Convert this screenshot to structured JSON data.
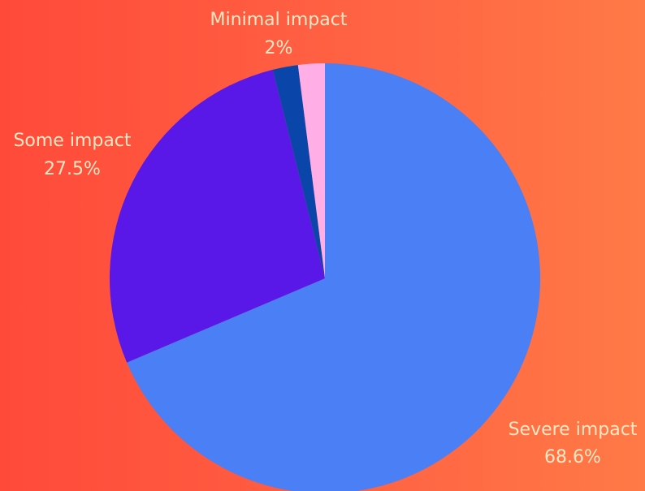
{
  "chart_data": {
    "type": "pie",
    "title": "",
    "slices": [
      {
        "label": "Severe impact",
        "value": 68.6,
        "value_label": "68.6%",
        "color": "#4b7ff5"
      },
      {
        "label": "Some impact",
        "value": 27.5,
        "value_label": "27.5%",
        "color": "#5a18e8"
      },
      {
        "label": "",
        "value": 1.9,
        "value_label": "",
        "color": "#0a46aa"
      },
      {
        "label": "Minimal impact",
        "value": 2.0,
        "value_label": "2%",
        "color": "#ffaee6"
      }
    ],
    "background_colors": [
      "#ff4a3a",
      "#ff7a46"
    ],
    "label_color": "#ffe7c4"
  }
}
